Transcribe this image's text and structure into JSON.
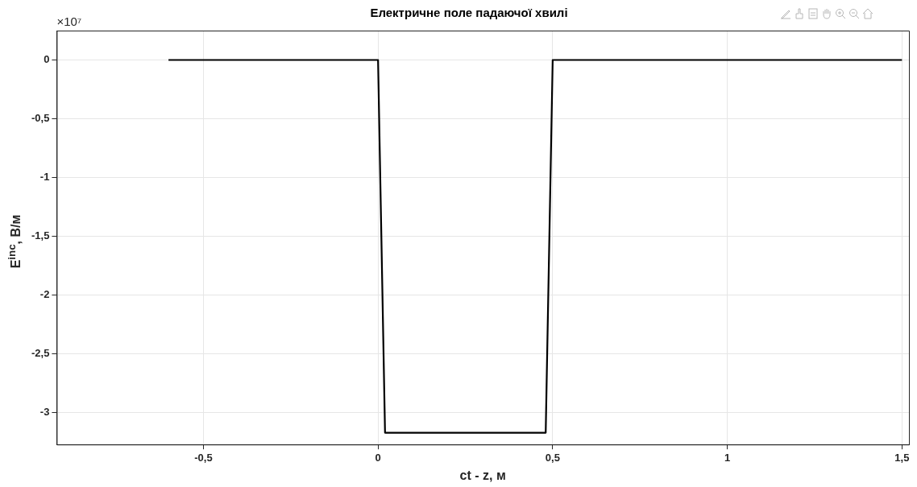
{
  "chart_data": {
    "type": "line",
    "title": "Електричне поле падаючої хвилі",
    "xlabel": "ct - z, м",
    "ylabel": "E$^{inc}$, В/м",
    "annotations": [
      "×10⁷"
    ],
    "x": [
      -0.6,
      0,
      0.02,
      0.48,
      0.5,
      1.5
    ],
    "series": [
      {
        "color": "#000000",
        "values": [
          0,
          0,
          -3.17,
          -3.17,
          0,
          0
        ]
      }
    ],
    "xlim": [
      -0.92,
      1.52
    ],
    "xticks": [
      {
        "value": -0.5,
        "label": "-0,5"
      },
      0,
      {
        "value": 0.5,
        "label": "0,5"
      },
      1,
      {
        "value": 1.5,
        "label": "1,5"
      }
    ],
    "ylim": [
      -3.27,
      0.25
    ],
    "yticks": [
      -3,
      {
        "value": -2.5,
        "label": "-2,5"
      },
      -2,
      {
        "value": -1.5,
        "label": "-1,5"
      },
      -1,
      {
        "value": -0.5,
        "label": "-0,5"
      },
      0
    ],
    "grid": true,
    "legend": false,
    "marker": "none",
    "line_style": "solid"
  }
}
